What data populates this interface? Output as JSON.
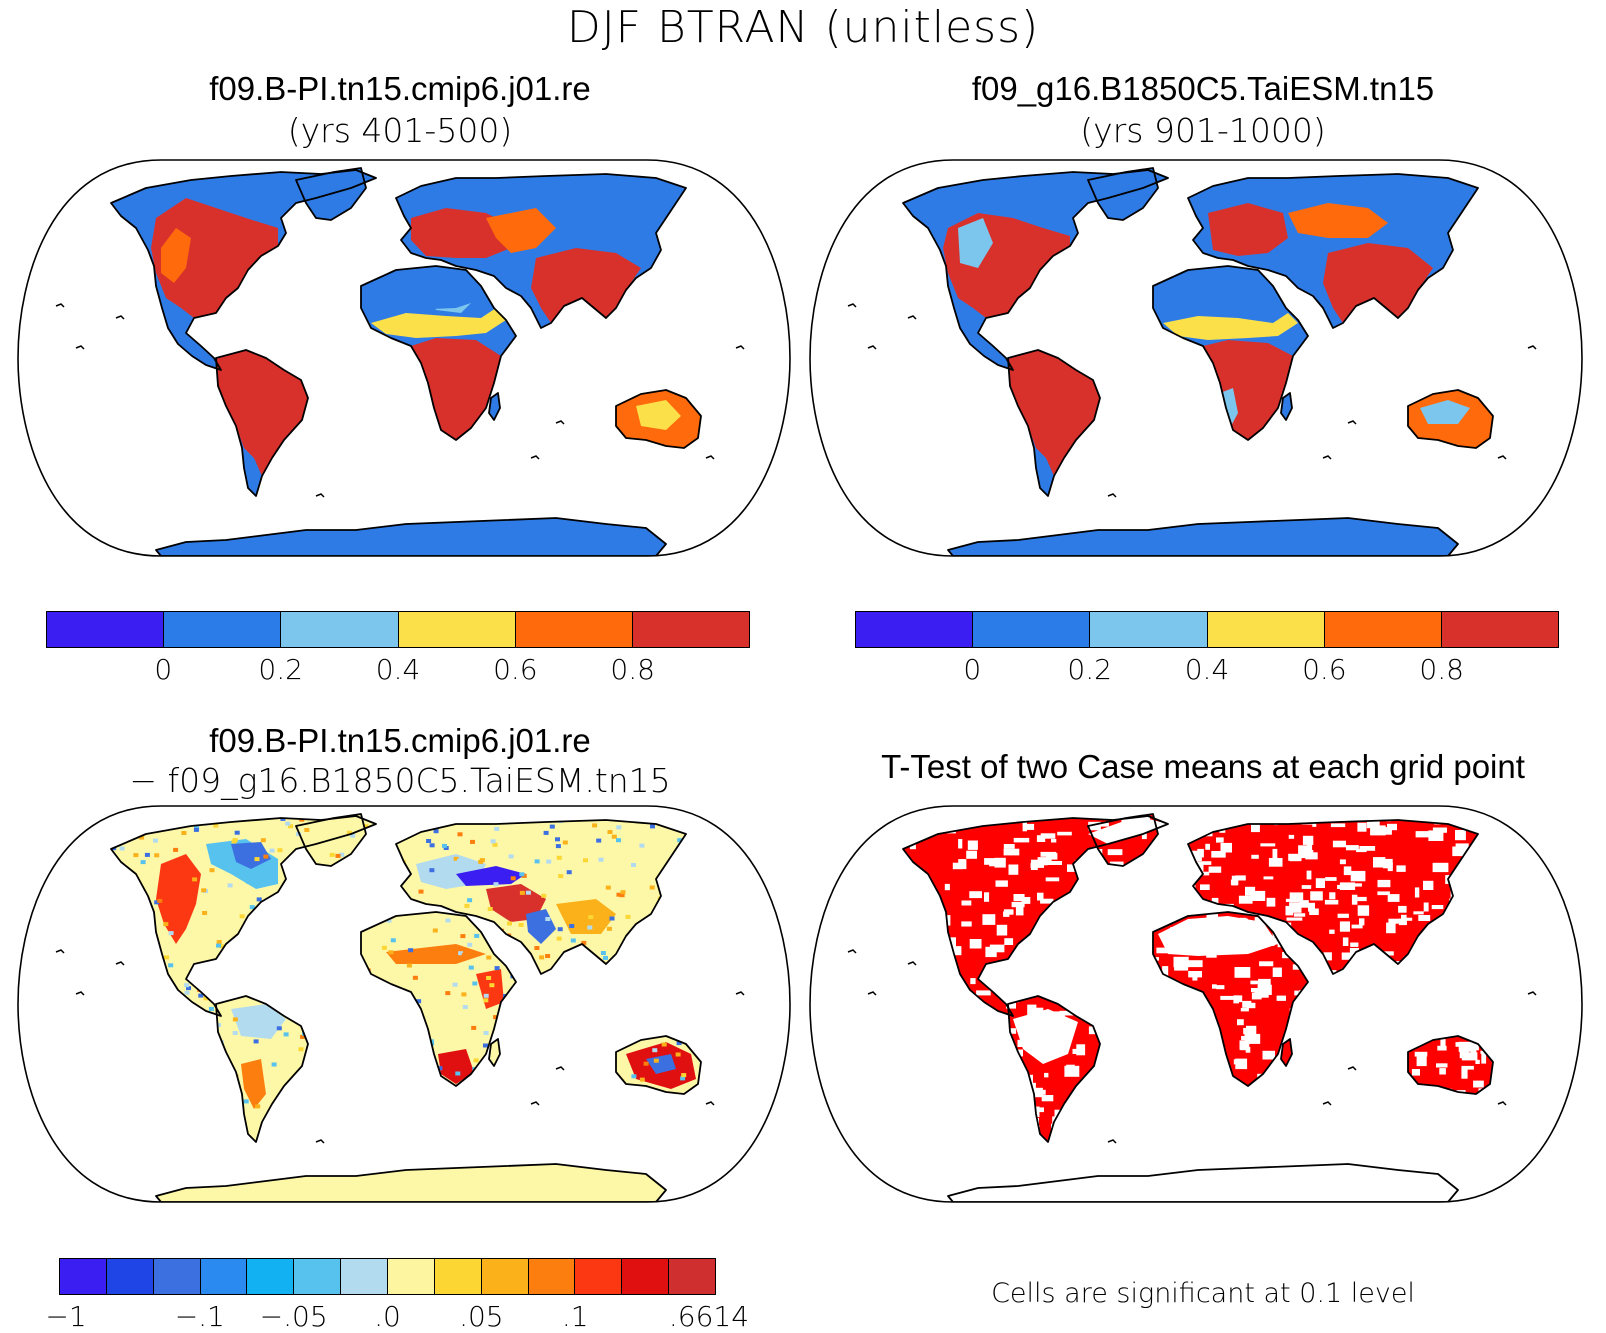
{
  "figure": {
    "title": "DJF BTRAN (unitless)"
  },
  "panels": {
    "top_left": {
      "title": "f09.B-PI.tn15.cmip6.j01.re",
      "subtitle": "(yrs 401-500)"
    },
    "top_right": {
      "title": "f09_g16.B1850C5.TaiESM.tn15",
      "subtitle": "(yrs 901-1000)"
    },
    "bottom_left": {
      "title": "f09.B-PI.tn15.cmip6.j01.re",
      "subtitle": "− f09_g16.B1850C5.TaiESM.tn15"
    },
    "bottom_right": {
      "title": "T-Test of two Case means at each grid point",
      "note": "Cells are significant at 0.1 level"
    }
  },
  "colorbars": {
    "mean": {
      "colors": [
        "#3a1ef2",
        "#2b7be8",
        "#7cc6ee",
        "#fbe04a",
        "#ff6a0d",
        "#d8312c"
      ],
      "labels": [
        "0",
        "0.2",
        "0.4",
        "0.6",
        "0.8"
      ]
    },
    "diff": {
      "colors": [
        "#3a1ef2",
        "#1f45e6",
        "#3c6fe0",
        "#2b8af0",
        "#12b2f2",
        "#58c2ef",
        "#b3dbf0",
        "#fdf5a0",
        "#fcd734",
        "#fbb11a",
        "#fb7e0e",
        "#fb3812",
        "#e00f10",
        "#cf2f2f"
      ],
      "labels": [
        "−1",
        "−.1",
        "−.05",
        ".0",
        ".05",
        ".1",
        ".6614"
      ]
    }
  },
  "fill_colors": {
    "land_mean_dry": "#2f7be6",
    "land_mean_wet": "#d8312c",
    "diff_neutral": "#fdf7a8",
    "significant": "#ff0000"
  }
}
